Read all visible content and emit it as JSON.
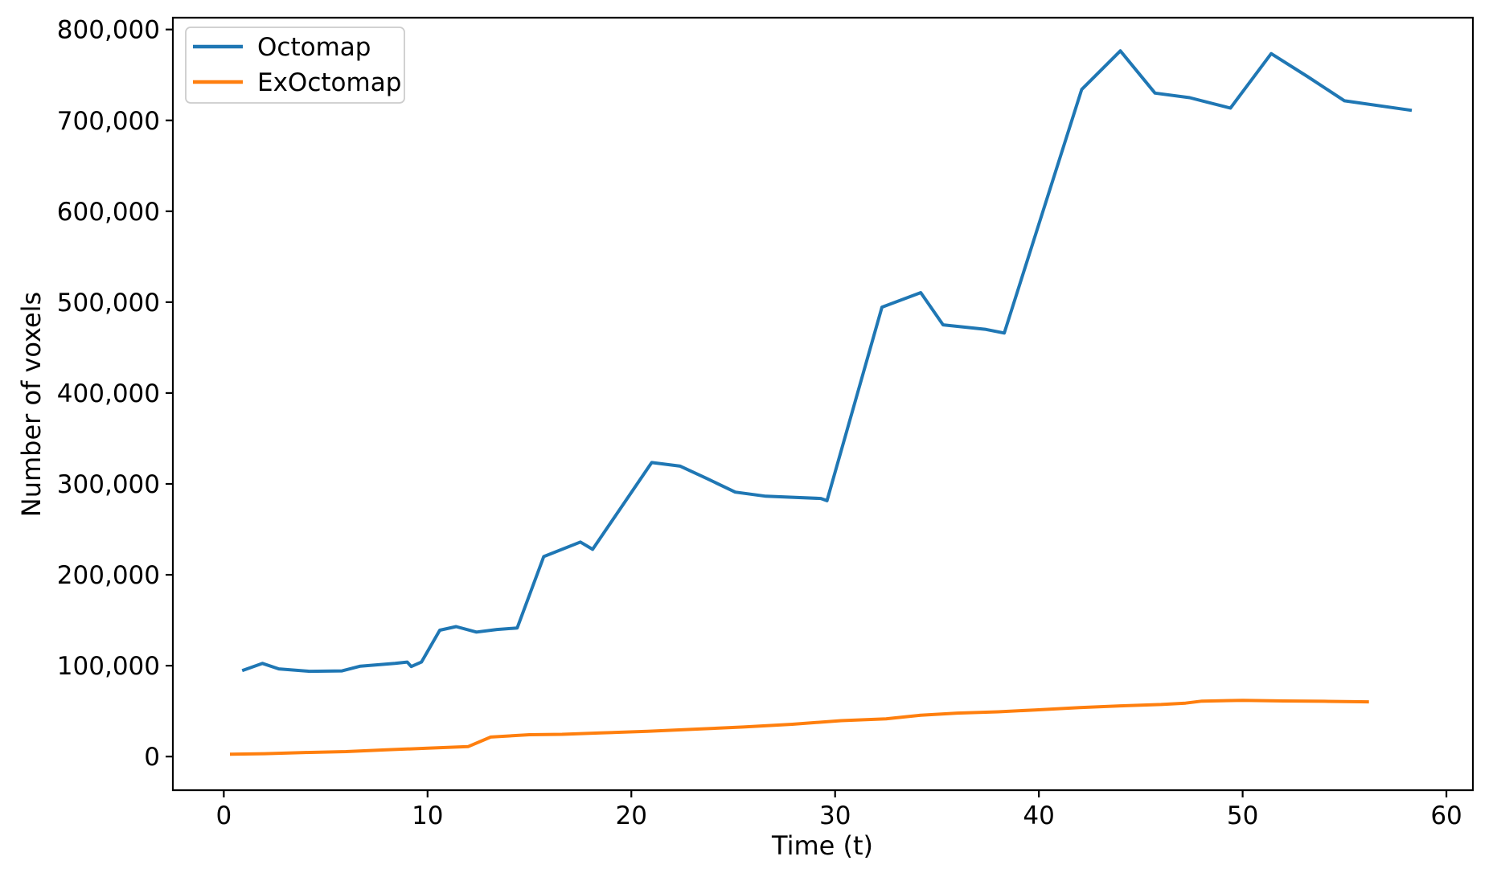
{
  "figure": {
    "background": "#ffffff",
    "spine_color": "#000000"
  },
  "chart_data": {
    "type": "line",
    "title": "",
    "xlabel": "Time (t)",
    "ylabel": "Number of voxels",
    "xlim": [
      -2.5,
      61.3
    ],
    "ylim": [
      -37000,
      813000
    ],
    "grid": false,
    "legend_position": "upper left",
    "x_ticks": [
      {
        "v": 0,
        "label": "0"
      },
      {
        "v": 10,
        "label": "10"
      },
      {
        "v": 20,
        "label": "20"
      },
      {
        "v": 30,
        "label": "30"
      },
      {
        "v": 40,
        "label": "40"
      },
      {
        "v": 50,
        "label": "50"
      },
      {
        "v": 60,
        "label": "60"
      }
    ],
    "y_ticks": [
      {
        "v": 0,
        "label": "0"
      },
      {
        "v": 100000,
        "label": "100,000"
      },
      {
        "v": 200000,
        "label": "200,000"
      },
      {
        "v": 300000,
        "label": "300,000"
      },
      {
        "v": 400000,
        "label": "400,000"
      },
      {
        "v": 500000,
        "label": "500,000"
      },
      {
        "v": 600000,
        "label": "600,000"
      },
      {
        "v": 700000,
        "label": "700,000"
      },
      {
        "v": 800000,
        "label": "800,000"
      }
    ],
    "series": [
      {
        "name": "Octomap",
        "color": "#1f77b4",
        "points": [
          [
            0.9,
            94500
          ],
          [
            1.9,
            102500
          ],
          [
            2.7,
            96500
          ],
          [
            4.2,
            93800
          ],
          [
            5.8,
            94300
          ],
          [
            6.7,
            99500
          ],
          [
            8.4,
            102500
          ],
          [
            9.0,
            104000
          ],
          [
            9.2,
            99000
          ],
          [
            9.7,
            104000
          ],
          [
            10.6,
            139000
          ],
          [
            11.4,
            143000
          ],
          [
            12.4,
            137000
          ],
          [
            13.4,
            139800
          ],
          [
            14.4,
            141500
          ],
          [
            15.7,
            220000
          ],
          [
            17.5,
            236000
          ],
          [
            18.1,
            228000
          ],
          [
            21.0,
            323500
          ],
          [
            22.4,
            319500
          ],
          [
            23.7,
            306000
          ],
          [
            25.1,
            291000
          ],
          [
            26.6,
            286500
          ],
          [
            29.3,
            284000
          ],
          [
            29.6,
            281500
          ],
          [
            32.3,
            494500
          ],
          [
            34.2,
            510500
          ],
          [
            35.3,
            475000
          ],
          [
            37.4,
            470000
          ],
          [
            38.3,
            466000
          ],
          [
            42.1,
            734000
          ],
          [
            44.0,
            776500
          ],
          [
            45.7,
            730000
          ],
          [
            47.4,
            725000
          ],
          [
            49.4,
            713500
          ],
          [
            51.4,
            773500
          ],
          [
            53.2,
            748000
          ],
          [
            55.0,
            721500
          ],
          [
            58.3,
            711000
          ]
        ]
      },
      {
        "name": "ExOctomap",
        "color": "#ff7f0e",
        "points": [
          [
            0.3,
            2500
          ],
          [
            2,
            3200
          ],
          [
            4,
            4500
          ],
          [
            6,
            5500
          ],
          [
            8,
            7500
          ],
          [
            10,
            9200
          ],
          [
            12,
            11000
          ],
          [
            13.1,
            21500
          ],
          [
            15,
            24000
          ],
          [
            16.6,
            24500
          ],
          [
            18.5,
            26000
          ],
          [
            20.8,
            27800
          ],
          [
            23,
            30000
          ],
          [
            25.5,
            32500
          ],
          [
            27.9,
            35500
          ],
          [
            30.3,
            39500
          ],
          [
            32.5,
            41500
          ],
          [
            34.2,
            45500
          ],
          [
            36,
            47800
          ],
          [
            38,
            49200
          ],
          [
            39.8,
            51300
          ],
          [
            42,
            53800
          ],
          [
            44,
            55800
          ],
          [
            46,
            57300
          ],
          [
            47.2,
            58800
          ],
          [
            48,
            61000
          ],
          [
            50,
            61800
          ],
          [
            52,
            61200
          ],
          [
            54,
            60800
          ],
          [
            56.2,
            60200
          ]
        ]
      }
    ]
  }
}
